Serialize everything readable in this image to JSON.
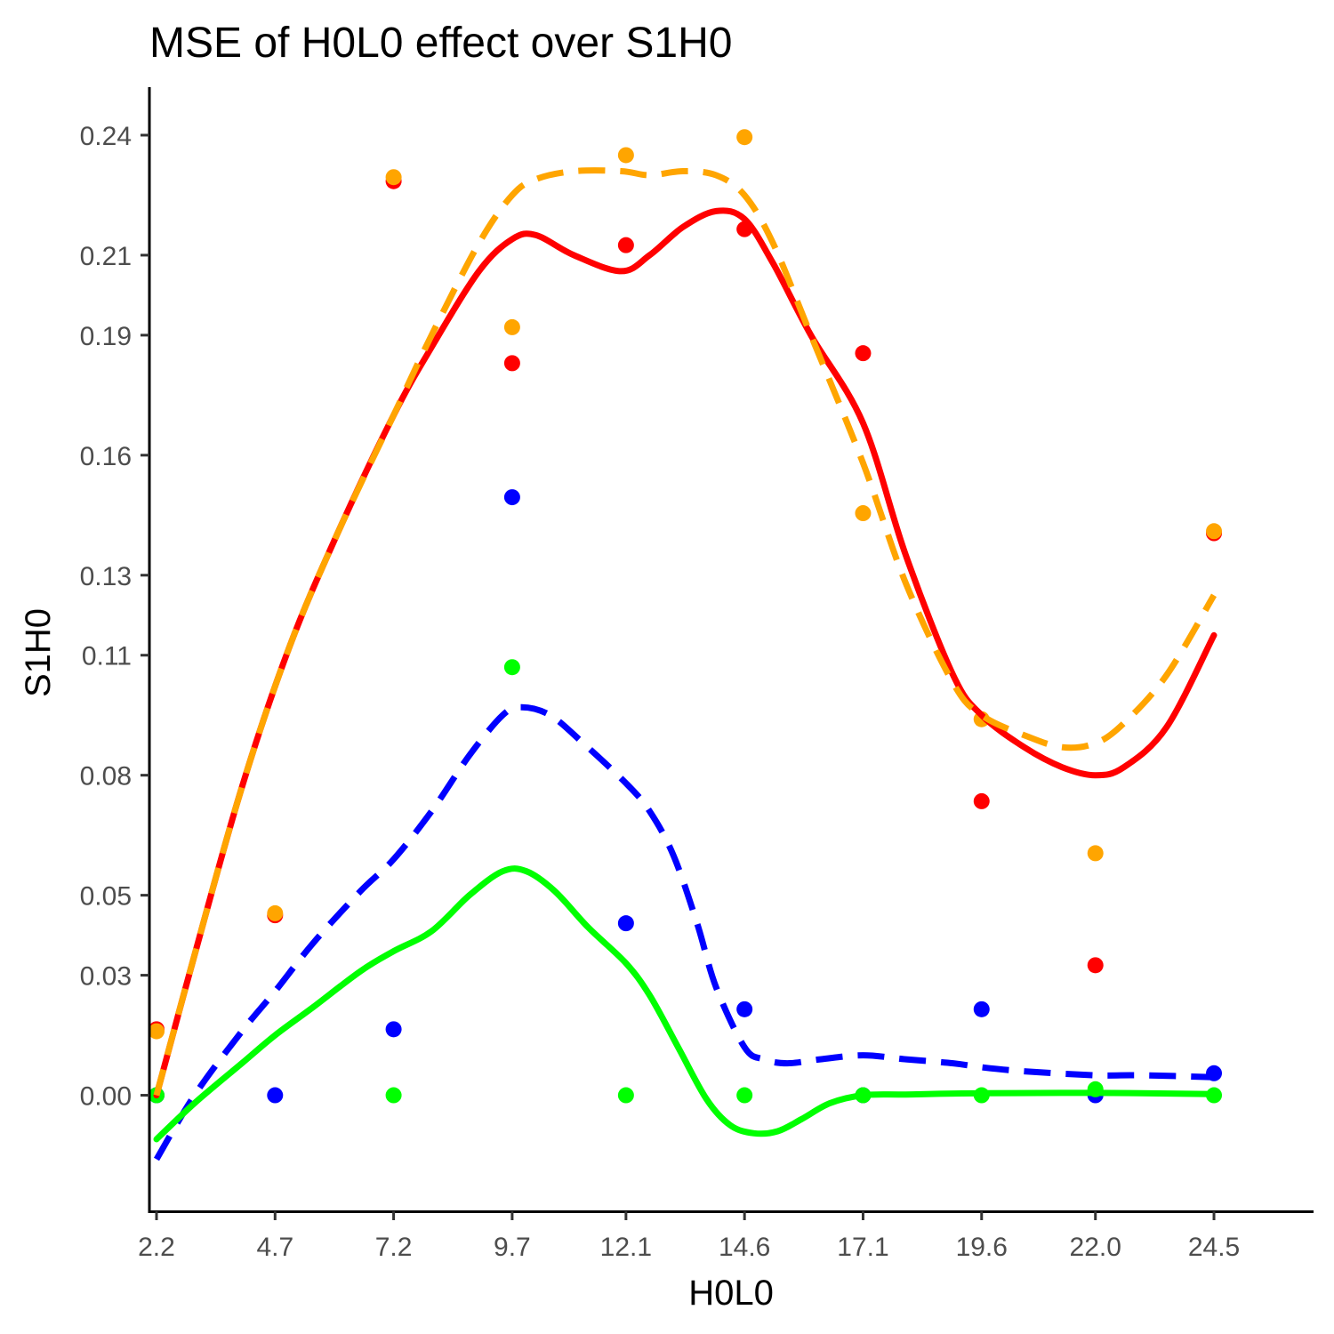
{
  "chart_data": {
    "type": "scatter",
    "title": "MSE of H0L0 effect over  S1H0",
    "xlabel": "H0L0",
    "ylabel": "S1H0",
    "x_ticks": [
      2.2,
      4.7,
      7.2,
      9.7,
      12.1,
      14.6,
      17.1,
      19.6,
      22.0,
      24.5
    ],
    "x_tick_labels": [
      "2.2",
      "4.7",
      "7.2",
      "9.7",
      "12.1",
      "14.6",
      "17.1",
      "19.6",
      "22.0",
      "24.5"
    ],
    "y_ticks": [
      0.0,
      0.03,
      0.05,
      0.08,
      0.11,
      0.13,
      0.16,
      0.19,
      0.21,
      0.24
    ],
    "y_tick_labels": [
      "0.00",
      "0.03",
      "0.05",
      "0.08",
      "0.11",
      "0.13",
      "0.16",
      "0.19",
      "0.21",
      "0.24"
    ],
    "xlim": [
      2.05,
      26.6
    ],
    "ylim": [
      -0.029,
      0.252
    ],
    "grid": false,
    "legend": "none",
    "series": [
      {
        "name": "red",
        "color": "#ff0000",
        "points": [
          [
            2.2,
            0.0165
          ],
          [
            4.7,
            0.045
          ],
          [
            7.2,
            0.2285
          ],
          [
            9.7,
            0.183
          ],
          [
            12.1,
            0.2125
          ],
          [
            14.6,
            0.2165
          ],
          [
            17.1,
            0.1855
          ],
          [
            19.6,
            0.0735
          ],
          [
            22.0,
            0.0325
          ],
          [
            24.5,
            0.1405
          ]
        ],
        "smooth": {
          "dashed": false,
          "x": [
            2.2,
            3.0,
            4.0,
            5.0,
            6.0,
            7.2,
            8.0,
            9.0,
            9.7,
            10.2,
            11.0,
            12.0,
            12.6,
            13.3,
            14.0,
            14.6,
            15.2,
            16.0,
            17.1,
            18.0,
            19.0,
            19.6,
            20.5,
            21.3,
            22.0,
            22.6,
            23.5,
            24.5
          ],
          "y": [
            0.0,
            0.035,
            0.077,
            0.112,
            0.14,
            0.17,
            0.187,
            0.206,
            0.214,
            0.215,
            0.21,
            0.206,
            0.21,
            0.217,
            0.221,
            0.219,
            0.208,
            0.19,
            0.168,
            0.135,
            0.105,
            0.095,
            0.087,
            0.082,
            0.08,
            0.082,
            0.092,
            0.115
          ]
        }
      },
      {
        "name": "orange",
        "color": "#ffa500",
        "points": [
          [
            2.2,
            0.016
          ],
          [
            4.7,
            0.0455
          ],
          [
            7.2,
            0.2295
          ],
          [
            9.7,
            0.192
          ],
          [
            12.1,
            0.235
          ],
          [
            14.6,
            0.2395
          ],
          [
            17.1,
            0.1455
          ],
          [
            19.6,
            0.094
          ],
          [
            22.0,
            0.0605
          ],
          [
            24.5,
            0.141
          ]
        ],
        "smooth": {
          "dashed": true,
          "x": [
            2.2,
            3.0,
            4.0,
            5.0,
            6.0,
            7.2,
            8.0,
            9.0,
            9.7,
            10.2,
            11.0,
            12.0,
            12.6,
            13.3,
            14.0,
            14.6,
            15.2,
            16.0,
            17.1,
            18.0,
            19.0,
            19.6,
            20.5,
            21.3,
            22.0,
            22.6,
            23.5,
            24.5
          ],
          "y": [
            0.0,
            0.035,
            0.077,
            0.112,
            0.14,
            0.17,
            0.19,
            0.213,
            0.225,
            0.229,
            0.231,
            0.231,
            0.23,
            0.231,
            0.23,
            0.225,
            0.213,
            0.19,
            0.158,
            0.128,
            0.103,
            0.095,
            0.09,
            0.087,
            0.088,
            0.093,
            0.105,
            0.125
          ]
        }
      },
      {
        "name": "blue",
        "color": "#0000ff",
        "points": [
          [
            2.2,
            0.0
          ],
          [
            4.7,
            0.0
          ],
          [
            7.2,
            0.0165
          ],
          [
            9.7,
            0.1495
          ],
          [
            12.1,
            0.043
          ],
          [
            14.6,
            0.0215
          ],
          [
            17.1,
            0.0
          ],
          [
            19.6,
            0.0215
          ],
          [
            22.0,
            0.0
          ],
          [
            24.5,
            0.0055
          ]
        ],
        "smooth": {
          "dashed": true,
          "x": [
            2.2,
            3.0,
            4.0,
            4.7,
            5.5,
            6.5,
            7.2,
            8.0,
            8.8,
            9.5,
            9.9,
            10.5,
            11.2,
            12.1,
            12.6,
            13.1,
            13.6,
            14.0,
            14.6,
            15.0,
            15.5,
            16.2,
            17.1,
            18.0,
            19.0,
            19.6,
            20.5,
            22.0,
            23.0,
            24.5
          ],
          "y": [
            -0.016,
            0.0,
            0.016,
            0.026,
            0.038,
            0.051,
            0.059,
            0.071,
            0.085,
            0.095,
            0.097,
            0.095,
            0.088,
            0.078,
            0.071,
            0.06,
            0.043,
            0.027,
            0.012,
            0.009,
            0.008,
            0.009,
            0.01,
            0.009,
            0.008,
            0.007,
            0.006,
            0.005,
            0.005,
            0.0045
          ]
        }
      },
      {
        "name": "green",
        "color": "#00ff00",
        "points": [
          [
            2.2,
            0.0
          ],
          [
            7.2,
            0.0
          ],
          [
            9.7,
            0.107
          ],
          [
            12.1,
            0.0
          ],
          [
            14.6,
            0.0
          ],
          [
            17.1,
            0.0
          ],
          [
            19.6,
            0.0
          ],
          [
            22.0,
            0.0015
          ],
          [
            24.5,
            0.0
          ]
        ],
        "smooth": {
          "dashed": false,
          "x": [
            2.2,
            3.0,
            4.0,
            4.7,
            5.5,
            6.5,
            7.2,
            8.0,
            8.8,
            9.5,
            10.0,
            10.6,
            11.3,
            12.1,
            12.6,
            13.2,
            13.8,
            14.3,
            14.8,
            15.3,
            15.8,
            16.4,
            17.1,
            18.0,
            19.6,
            22.0,
            24.5
          ],
          "y": [
            -0.011,
            -0.002,
            0.008,
            0.015,
            0.022,
            0.031,
            0.036,
            0.041,
            0.05,
            0.056,
            0.056,
            0.051,
            0.042,
            0.033,
            0.025,
            0.012,
            -0.001,
            -0.0075,
            -0.0095,
            -0.009,
            -0.006,
            -0.002,
            0.0,
            0.0002,
            0.0005,
            0.0006,
            0.0003
          ]
        }
      }
    ]
  }
}
